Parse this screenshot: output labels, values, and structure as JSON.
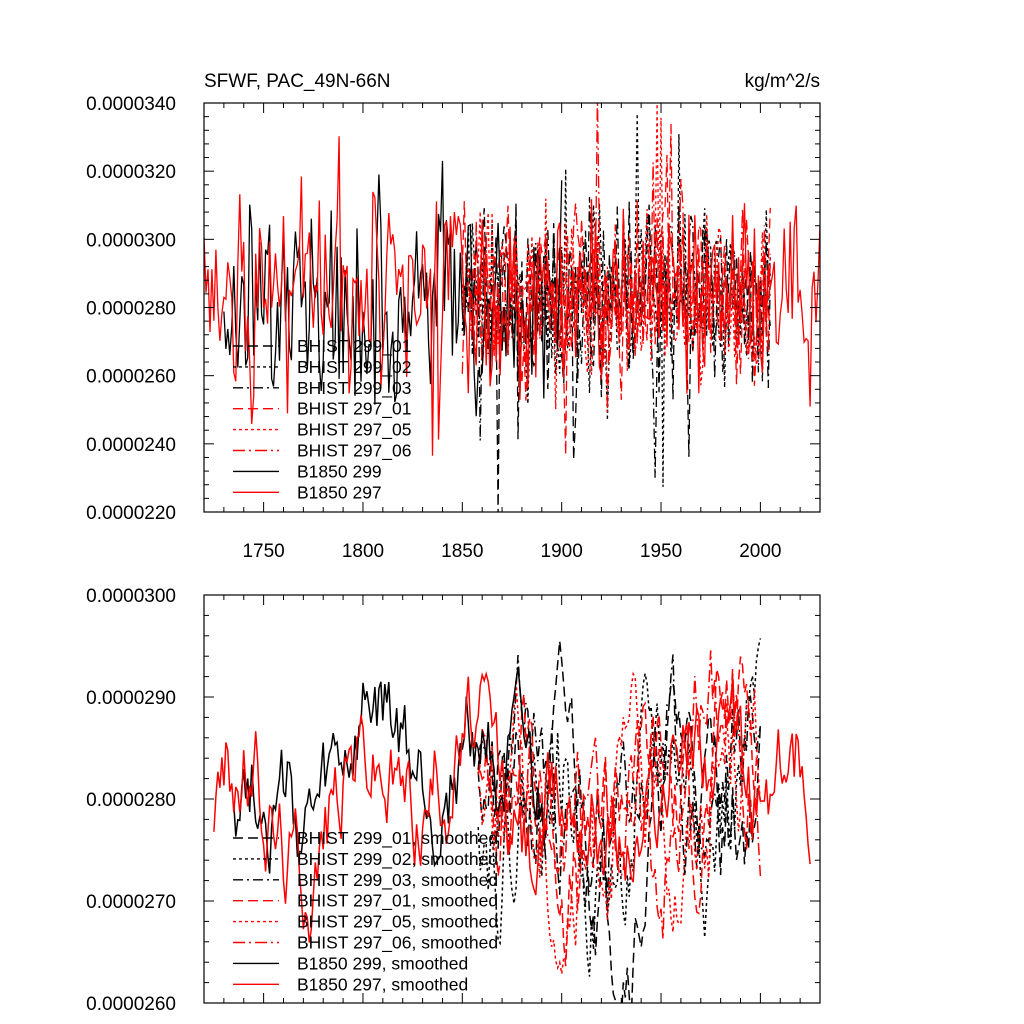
{
  "header": {
    "title": "SFWF, PAC_49N-66N",
    "units": "kg/m^2/s"
  },
  "colors": {
    "black": "#000000",
    "red": "#ff0000"
  },
  "chart_data": [
    {
      "type": "line",
      "panel": "top",
      "title": "SFWF, PAC_49N-66N",
      "units": "kg/m^2/s",
      "xlim": [
        1720,
        2030
      ],
      "ylim": [
        2.2e-05,
        3.4e-05
      ],
      "yticks": [
        2.2e-05,
        2.4e-05,
        2.6e-05,
        2.8e-05,
        3e-05,
        3.2e-05,
        3.4e-05
      ],
      "ytick_labels": [
        "0.0000220",
        "0.0000240",
        "0.0000260",
        "0.0000280",
        "0.0000300",
        "0.0000320",
        "0.0000340"
      ],
      "xticks": [
        1750,
        1800,
        1850,
        1900,
        1950,
        2000
      ],
      "xtick_labels": [
        "1750",
        "1800",
        "1850",
        "1900",
        "1950",
        "2000"
      ],
      "legend_position": "bottom-left",
      "series": [
        {
          "name": "BHIST 299_01",
          "color": "#000000",
          "dash": "10,5",
          "x_range": [
            1850,
            2005
          ],
          "mean": 2.83e-05,
          "amplitude": 2.3e-06,
          "seed": 11
        },
        {
          "name": "BHIST 299_02",
          "color": "#000000",
          "dash": "3,3",
          "x_range": [
            1850,
            2005
          ],
          "mean": 2.82e-05,
          "amplitude": 2.4e-06,
          "seed": 12
        },
        {
          "name": "BHIST 299_03",
          "color": "#000000",
          "dash": "10,4,2,4",
          "x_range": [
            1850,
            2005
          ],
          "mean": 2.83e-05,
          "amplitude": 2.2e-06,
          "seed": 13
        },
        {
          "name": "BHIST 297_01",
          "color": "#ff0000",
          "dash": "10,5",
          "x_range": [
            1850,
            2005
          ],
          "mean": 2.83e-05,
          "amplitude": 2.2e-06,
          "seed": 14
        },
        {
          "name": "BHIST 297_05",
          "color": "#ff0000",
          "dash": "3,3",
          "x_range": [
            1850,
            2005
          ],
          "mean": 2.82e-05,
          "amplitude": 2.3e-06,
          "seed": 15
        },
        {
          "name": "BHIST 297_06",
          "color": "#ff0000",
          "dash": "12,4,2,4",
          "x_range": [
            1850,
            2005
          ],
          "mean": 2.83e-05,
          "amplitude": 2.2e-06,
          "seed": 16
        },
        {
          "name": "B1850 299",
          "color": "#000000",
          "dash": "",
          "x_range": [
            1730,
            1900
          ],
          "mean": 2.82e-05,
          "amplitude": 2.6e-06,
          "seed": 17
        },
        {
          "name": "B1850 297",
          "color": "#ff0000",
          "dash": "",
          "x_range": [
            1720,
            2030
          ],
          "mean": 2.82e-05,
          "amplitude": 2.4e-06,
          "seed": 18
        }
      ]
    },
    {
      "type": "line",
      "panel": "bottom",
      "title": "",
      "xlim": [
        1720,
        2030
      ],
      "ylim": [
        2.6e-05,
        3e-05
      ],
      "yticks": [
        2.6e-05,
        2.7e-05,
        2.8e-05,
        2.9e-05,
        3e-05
      ],
      "ytick_labels": [
        "0.0000260",
        "0.0000270",
        "0.0000280",
        "0.0000290",
        "0.0000300"
      ],
      "xticks": [
        1750,
        1800,
        1850,
        1900,
        1950,
        2000
      ],
      "xtick_labels": [
        "",
        "",
        "",
        "",
        "",
        ""
      ],
      "legend_position": "bottom-left",
      "series": [
        {
          "name": "BHIST 299_01, smoothed",
          "color": "#000000",
          "dash": "10,5",
          "x_range": [
            1858,
            2000
          ],
          "mean": 2.8e-05,
          "amplitude": 1.2e-06,
          "seed": 21
        },
        {
          "name": "BHIST 299_02, smoothed",
          "color": "#000000",
          "dash": "3,3",
          "x_range": [
            1858,
            2000
          ],
          "mean": 2.8e-05,
          "amplitude": 1.2e-06,
          "seed": 22
        },
        {
          "name": "BHIST 299_03, smoothed",
          "color": "#000000",
          "dash": "10,4,2,4",
          "x_range": [
            1858,
            2000
          ],
          "mean": 2.8e-05,
          "amplitude": 1.2e-06,
          "seed": 23
        },
        {
          "name": "BHIST 297_01, smoothed",
          "color": "#ff0000",
          "dash": "10,5",
          "x_range": [
            1858,
            2000
          ],
          "mean": 2.81e-05,
          "amplitude": 1.2e-06,
          "seed": 24
        },
        {
          "name": "BHIST 297_05, smoothed",
          "color": "#ff0000",
          "dash": "3,3",
          "x_range": [
            1858,
            2000
          ],
          "mean": 2.79e-05,
          "amplitude": 1.2e-06,
          "seed": 25
        },
        {
          "name": "BHIST 297_06, smoothed",
          "color": "#ff0000",
          "dash": "12,4,2,4",
          "x_range": [
            1858,
            2000
          ],
          "mean": 2.81e-05,
          "amplitude": 1.2e-06,
          "seed": 26
        },
        {
          "name": "B1850 299, smoothed",
          "color": "#000000",
          "dash": "",
          "x_range": [
            1735,
            1892
          ],
          "mean": 2.82e-05,
          "amplitude": 1e-06,
          "seed": 27
        },
        {
          "name": "B1850 297, smoothed",
          "color": "#ff0000",
          "dash": "",
          "x_range": [
            1725,
            2025
          ],
          "mean": 2.81e-05,
          "amplitude": 1e-06,
          "seed": 28
        }
      ]
    }
  ]
}
